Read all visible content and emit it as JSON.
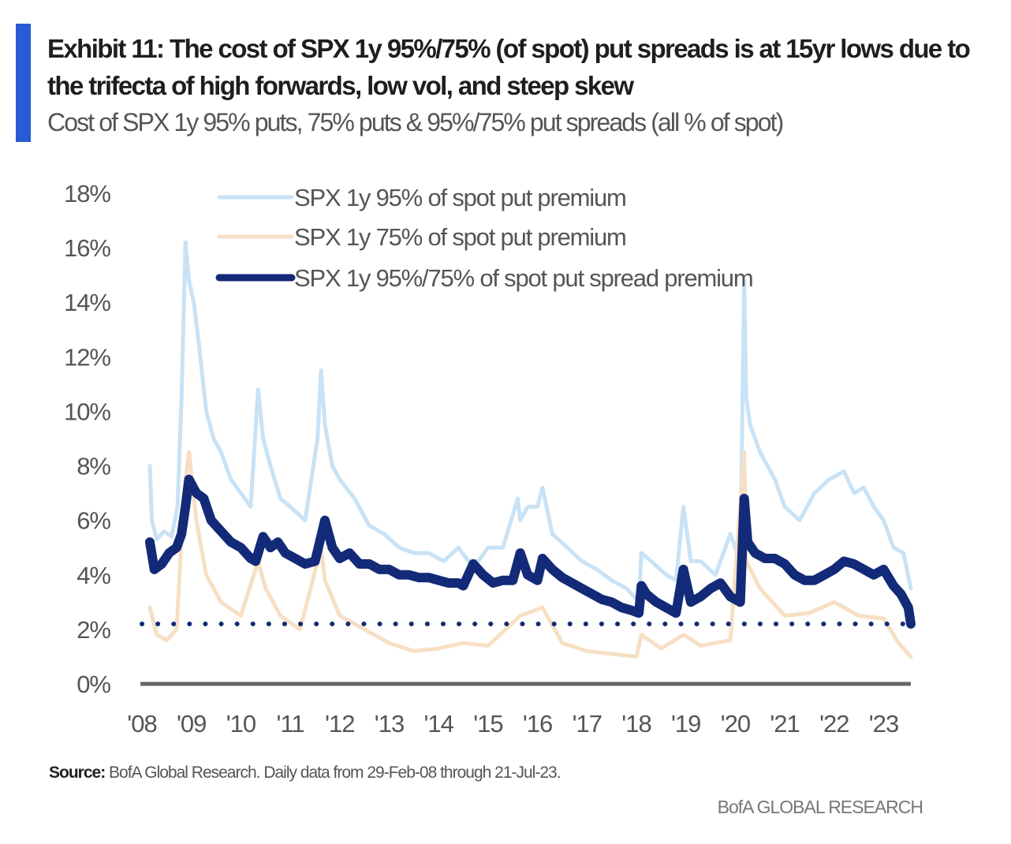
{
  "header": {
    "title": "Exhibit 11: The cost of SPX 1y 95%/75% (of spot) put spreads is at 15yr lows due to the trifecta of high forwards, low vol, and steep skew",
    "subtitle": "Cost of SPX 1y 95% puts, 75% puts & 95%/75% put spreads (all % of spot)"
  },
  "footer": {
    "source_label": "Source:",
    "source_text": "BofA Global Research.  Daily data from 29-Feb-08 through 21-Jul-23.",
    "brand": "BofA GLOBAL RESEARCH"
  },
  "colors": {
    "accent_bar": "#2a5bd7",
    "put95": "#c9e2f5",
    "put75": "#f6dfc4",
    "spread": "#132a78",
    "axis": "#555555"
  },
  "chart_data": {
    "type": "line",
    "title": "Cost of SPX 1y 95% puts, 75% puts & 95%/75% put spreads (all % of spot)",
    "xlabel": "",
    "ylabel": "",
    "ylim": [
      0,
      18
    ],
    "xlim": [
      2008.0,
      2023.6
    ],
    "grid": false,
    "legend_position": "top-center",
    "y_ticks": [
      "0%",
      "2%",
      "4%",
      "6%",
      "8%",
      "10%",
      "12%",
      "14%",
      "16%",
      "18%"
    ],
    "y_tick_values": [
      0,
      2,
      4,
      6,
      8,
      10,
      12,
      14,
      16,
      18
    ],
    "x_ticks": [
      "'08",
      "'09",
      "'10",
      "'11",
      "'12",
      "'13",
      "'14",
      "'15",
      "'16",
      "'17",
      "'18",
      "'19",
      "'20",
      "'21",
      "'22",
      "'23"
    ],
    "x_tick_values": [
      2008,
      2009,
      2010,
      2011,
      2012,
      2013,
      2014,
      2015,
      2016,
      2017,
      2018,
      2019,
      2020,
      2021,
      2022,
      2023
    ],
    "series": [
      {
        "name": "SPX 1y 95% of spot put premium",
        "color": "#c9e2f5",
        "x": [
          2008.16,
          2008.2,
          2008.3,
          2008.45,
          2008.6,
          2008.72,
          2008.8,
          2008.88,
          2008.95,
          2009.05,
          2009.15,
          2009.3,
          2009.45,
          2009.6,
          2009.8,
          2010.0,
          2010.2,
          2010.35,
          2010.45,
          2010.6,
          2010.8,
          2011.0,
          2011.3,
          2011.55,
          2011.62,
          2011.7,
          2011.85,
          2012.0,
          2012.3,
          2012.6,
          2012.9,
          2013.2,
          2013.5,
          2013.8,
          2014.1,
          2014.4,
          2014.6,
          2014.8,
          2015.0,
          2015.3,
          2015.6,
          2015.65,
          2015.8,
          2016.0,
          2016.1,
          2016.3,
          2016.6,
          2016.9,
          2017.2,
          2017.5,
          2017.8,
          2018.05,
          2018.1,
          2018.3,
          2018.6,
          2018.8,
          2018.95,
          2019.1,
          2019.3,
          2019.6,
          2019.9,
          2020.1,
          2020.18,
          2020.22,
          2020.3,
          2020.5,
          2020.8,
          2021.0,
          2021.3,
          2021.6,
          2021.9,
          2022.2,
          2022.4,
          2022.6,
          2022.8,
          2023.0,
          2023.2,
          2023.4,
          2023.55
        ],
        "y": [
          8.0,
          6.0,
          5.3,
          5.6,
          5.4,
          6.5,
          10.5,
          16.2,
          14.8,
          14.0,
          12.5,
          10.0,
          9.0,
          8.5,
          7.5,
          7.0,
          6.5,
          10.8,
          9.0,
          8.0,
          6.8,
          6.5,
          6.0,
          9.0,
          11.5,
          9.5,
          8.0,
          7.5,
          6.8,
          5.8,
          5.5,
          5.0,
          4.8,
          4.8,
          4.5,
          5.0,
          4.5,
          4.5,
          5.0,
          5.0,
          6.8,
          6.0,
          6.5,
          6.5,
          7.2,
          5.5,
          5.0,
          4.5,
          4.2,
          3.8,
          3.5,
          3.0,
          4.8,
          4.5,
          4.0,
          3.8,
          6.5,
          4.5,
          4.5,
          4.0,
          5.5,
          4.5,
          14.8,
          10.5,
          9.5,
          8.5,
          7.5,
          6.5,
          6.0,
          7.0,
          7.5,
          7.8,
          7.0,
          7.2,
          6.5,
          6.0,
          5.0,
          4.8,
          3.5
        ]
      },
      {
        "name": "SPX 1y 75% of spot put premium",
        "color": "#f6dfc4",
        "x": [
          2008.16,
          2008.3,
          2008.5,
          2008.7,
          2008.85,
          2008.95,
          2009.1,
          2009.3,
          2009.6,
          2010.0,
          2010.35,
          2010.5,
          2010.8,
          2011.2,
          2011.62,
          2011.7,
          2012.0,
          2012.5,
          2013.0,
          2013.5,
          2014.0,
          2014.5,
          2015.0,
          2015.65,
          2016.1,
          2016.5,
          2017.0,
          2017.5,
          2018.0,
          2018.1,
          2018.5,
          2018.95,
          2019.3,
          2019.9,
          2020.18,
          2020.22,
          2020.5,
          2021.0,
          2021.5,
          2022.0,
          2022.5,
          2023.0,
          2023.3,
          2023.55
        ],
        "y": [
          2.8,
          1.8,
          1.6,
          2.0,
          7.0,
          8.5,
          6.0,
          4.0,
          3.0,
          2.5,
          4.5,
          3.5,
          2.5,
          2.0,
          5.0,
          3.8,
          2.5,
          2.0,
          1.5,
          1.2,
          1.3,
          1.5,
          1.4,
          2.5,
          2.8,
          1.5,
          1.2,
          1.1,
          1.0,
          1.8,
          1.3,
          1.8,
          1.4,
          1.6,
          8.5,
          4.5,
          3.5,
          2.5,
          2.6,
          3.0,
          2.5,
          2.4,
          1.5,
          1.0
        ]
      },
      {
        "name": "SPX 1y 95%/75% of spot put spread premium",
        "color": "#132a78",
        "x": [
          2008.16,
          2008.25,
          2008.4,
          2008.55,
          2008.7,
          2008.8,
          2008.88,
          2008.95,
          2009.1,
          2009.25,
          2009.4,
          2009.6,
          2009.8,
          2010.0,
          2010.2,
          2010.3,
          2010.45,
          2010.6,
          2010.75,
          2010.9,
          2011.1,
          2011.3,
          2011.5,
          2011.62,
          2011.7,
          2011.85,
          2012.0,
          2012.2,
          2012.4,
          2012.6,
          2012.8,
          2013.0,
          2013.2,
          2013.4,
          2013.6,
          2013.8,
          2014.0,
          2014.2,
          2014.4,
          2014.5,
          2014.7,
          2014.9,
          2015.1,
          2015.3,
          2015.5,
          2015.65,
          2015.8,
          2016.0,
          2016.1,
          2016.3,
          2016.5,
          2016.7,
          2016.9,
          2017.1,
          2017.3,
          2017.5,
          2017.7,
          2017.9,
          2018.05,
          2018.1,
          2018.2,
          2018.4,
          2018.6,
          2018.8,
          2018.95,
          2019.1,
          2019.3,
          2019.5,
          2019.7,
          2019.9,
          2020.1,
          2020.18,
          2020.25,
          2020.4,
          2020.6,
          2020.8,
          2021.0,
          2021.2,
          2021.4,
          2021.6,
          2021.8,
          2022.0,
          2022.2,
          2022.4,
          2022.6,
          2022.8,
          2023.0,
          2023.2,
          2023.35,
          2023.5,
          2023.55
        ],
        "y": [
          5.2,
          4.2,
          4.4,
          4.8,
          5.0,
          5.5,
          6.5,
          7.5,
          7.0,
          6.8,
          6.0,
          5.6,
          5.2,
          5.0,
          4.6,
          4.5,
          5.4,
          5.0,
          5.2,
          4.8,
          4.6,
          4.4,
          4.5,
          5.4,
          6.0,
          5.0,
          4.6,
          4.8,
          4.4,
          4.4,
          4.2,
          4.2,
          4.0,
          4.0,
          3.9,
          3.9,
          3.8,
          3.7,
          3.7,
          3.6,
          4.4,
          4.0,
          3.7,
          3.8,
          3.8,
          4.8,
          4.0,
          3.8,
          4.6,
          4.2,
          3.9,
          3.7,
          3.5,
          3.3,
          3.1,
          3.0,
          2.8,
          2.7,
          2.6,
          3.6,
          3.3,
          3.0,
          2.8,
          2.6,
          4.2,
          3.0,
          3.2,
          3.5,
          3.7,
          3.2,
          3.0,
          6.8,
          5.2,
          4.8,
          4.6,
          4.6,
          4.4,
          4.0,
          3.8,
          3.8,
          4.0,
          4.2,
          4.5,
          4.4,
          4.2,
          4.0,
          4.2,
          3.6,
          3.3,
          2.8,
          2.2
        ]
      },
      {
        "name": "Current spread level reference (dotted)",
        "color": "#132a78",
        "style": "dotted",
        "x": [
          2008.0,
          2023.55
        ],
        "y": [
          2.2,
          2.2
        ]
      }
    ],
    "legend": [
      "SPX 1y 95% of spot put premium",
      "SPX 1y 75% of spot put premium",
      "SPX 1y 95%/75% of spot put spread premium"
    ]
  }
}
